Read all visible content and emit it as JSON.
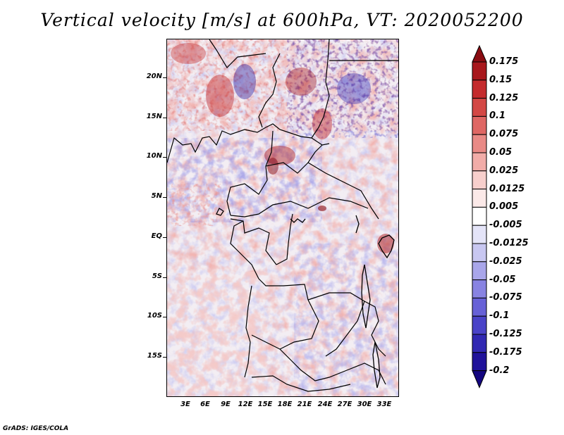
{
  "title": "Vertical velocity [m/s] at 600hPa, VT: 2020052200",
  "credit": "GrADS: IGES/COLA",
  "map": {
    "latitude_labels": [
      "20N",
      "15N",
      "10N",
      "5N",
      "EQ",
      "5S",
      "10S",
      "15S"
    ],
    "longitude_labels": [
      "3E",
      "6E",
      "9E",
      "12E",
      "15E",
      "18E",
      "21E",
      "24E",
      "27E",
      "30E",
      "33E"
    ]
  },
  "colorbar": {
    "labels": [
      "0.175",
      "0.15",
      "0.125",
      "0.1",
      "0.075",
      "0.05",
      "0.025",
      "0.0125",
      "0.005",
      "-0.005",
      "-0.0125",
      "-0.025",
      "-0.05",
      "-0.075",
      "-0.1",
      "-0.125",
      "-0.175",
      "-0.2"
    ],
    "colors": [
      "#8a0c12",
      "#a8171c",
      "#c42b2d",
      "#d34845",
      "#df6764",
      "#e98a86",
      "#f1aca8",
      "#f7cfcc",
      "#fbe9e8",
      "#ffffff",
      "#e4e4f8",
      "#c8c7f1",
      "#a9a6ea",
      "#8883e2",
      "#6761d7",
      "#4a43c8",
      "#3128b2",
      "#20129a",
      "#140680"
    ]
  }
}
